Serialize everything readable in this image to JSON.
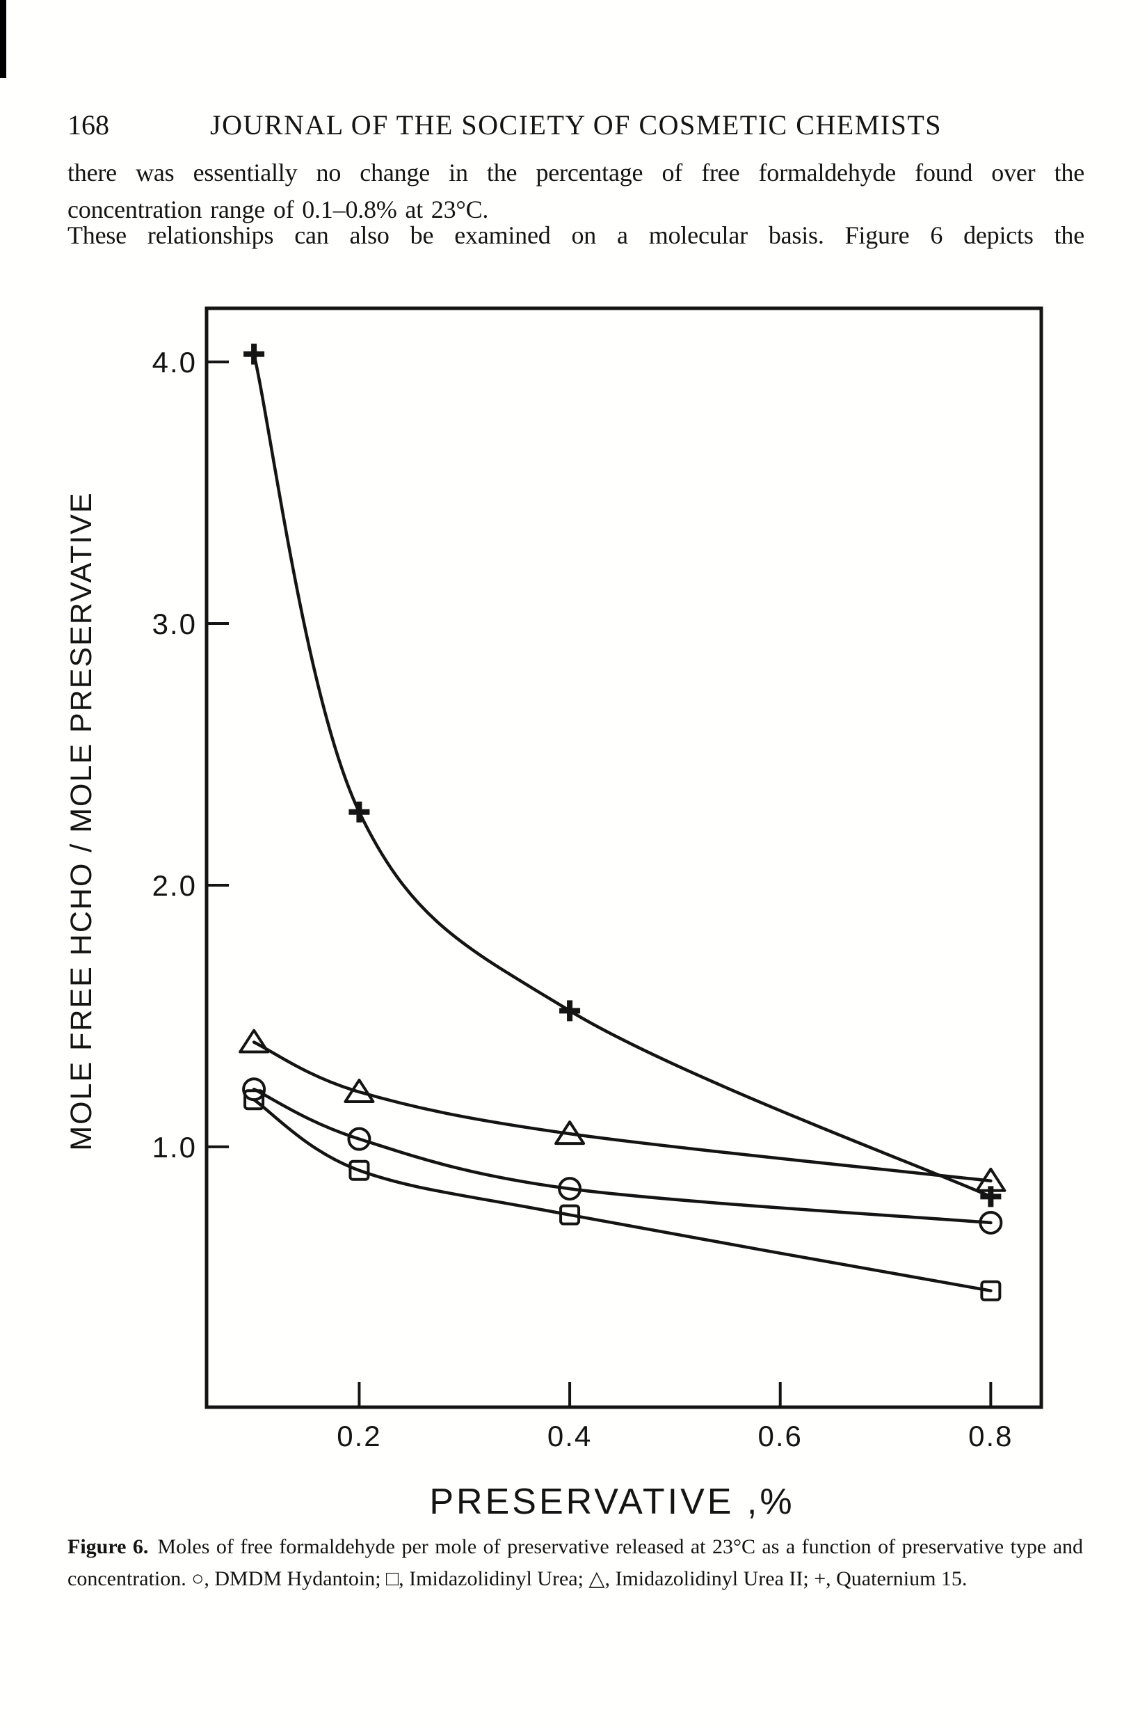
{
  "page": {
    "number": "168",
    "journal_title": "JOURNAL OF THE SOCIETY OF COSMETIC CHEMISTS",
    "paragraphs": [
      "there was essentially no change in the percentage of free formaldehyde found over the concentration range of 0.1–0.8% at 23°C.",
      "These relationships can also be examined on a molecular basis. Figure 6 depicts the"
    ]
  },
  "caption": {
    "label": "Figure 6.",
    "text": "Moles of free formaldehyde per mole of preservative released at 23°C as a function of preservative type and concentration. ○, DMDM Hydantoin; □, Imidazolidinyl Urea; △, Imidazolidinyl Urea II; +, Quaternium 15."
  },
  "colors": {
    "ink": "#141414",
    "paper": "#ffffff"
  },
  "chart_data": {
    "type": "line",
    "title": "",
    "xlabel": "PRESERVATIVE ,%",
    "ylabel": "MOLE FREE HCHO / MOLE PRESERVATIVE",
    "x": [
      0.1,
      0.2,
      0.4,
      0.8
    ],
    "x_ticks": [
      0.2,
      0.4,
      0.6,
      0.8
    ],
    "x_tick_labels": [
      "0.2",
      "0.4",
      "0.6",
      "0.8"
    ],
    "y_ticks": [
      1.0,
      2.0,
      3.0,
      4.0
    ],
    "y_tick_labels": [
      "1.0",
      "2.0",
      "3.0",
      "4.0"
    ],
    "xlim": [
      0.055,
      0.848
    ],
    "ylim": [
      0.005,
      4.205
    ],
    "grid": false,
    "legend_position": "none (markers identified in caption)",
    "series": [
      {
        "name": "Quaternium 15",
        "marker": "plus",
        "values": [
          4.03,
          2.28,
          1.52,
          0.81
        ]
      },
      {
        "name": "Imidazolidinyl Urea II",
        "marker": "triangle",
        "values": [
          1.4,
          1.21,
          1.05,
          0.87
        ]
      },
      {
        "name": "DMDM Hydantoin",
        "marker": "circle",
        "values": [
          1.22,
          1.03,
          0.84,
          0.71
        ]
      },
      {
        "name": "Imidazolidinyl Urea",
        "marker": "square",
        "values": [
          1.18,
          0.91,
          0.74,
          0.45
        ]
      }
    ]
  }
}
